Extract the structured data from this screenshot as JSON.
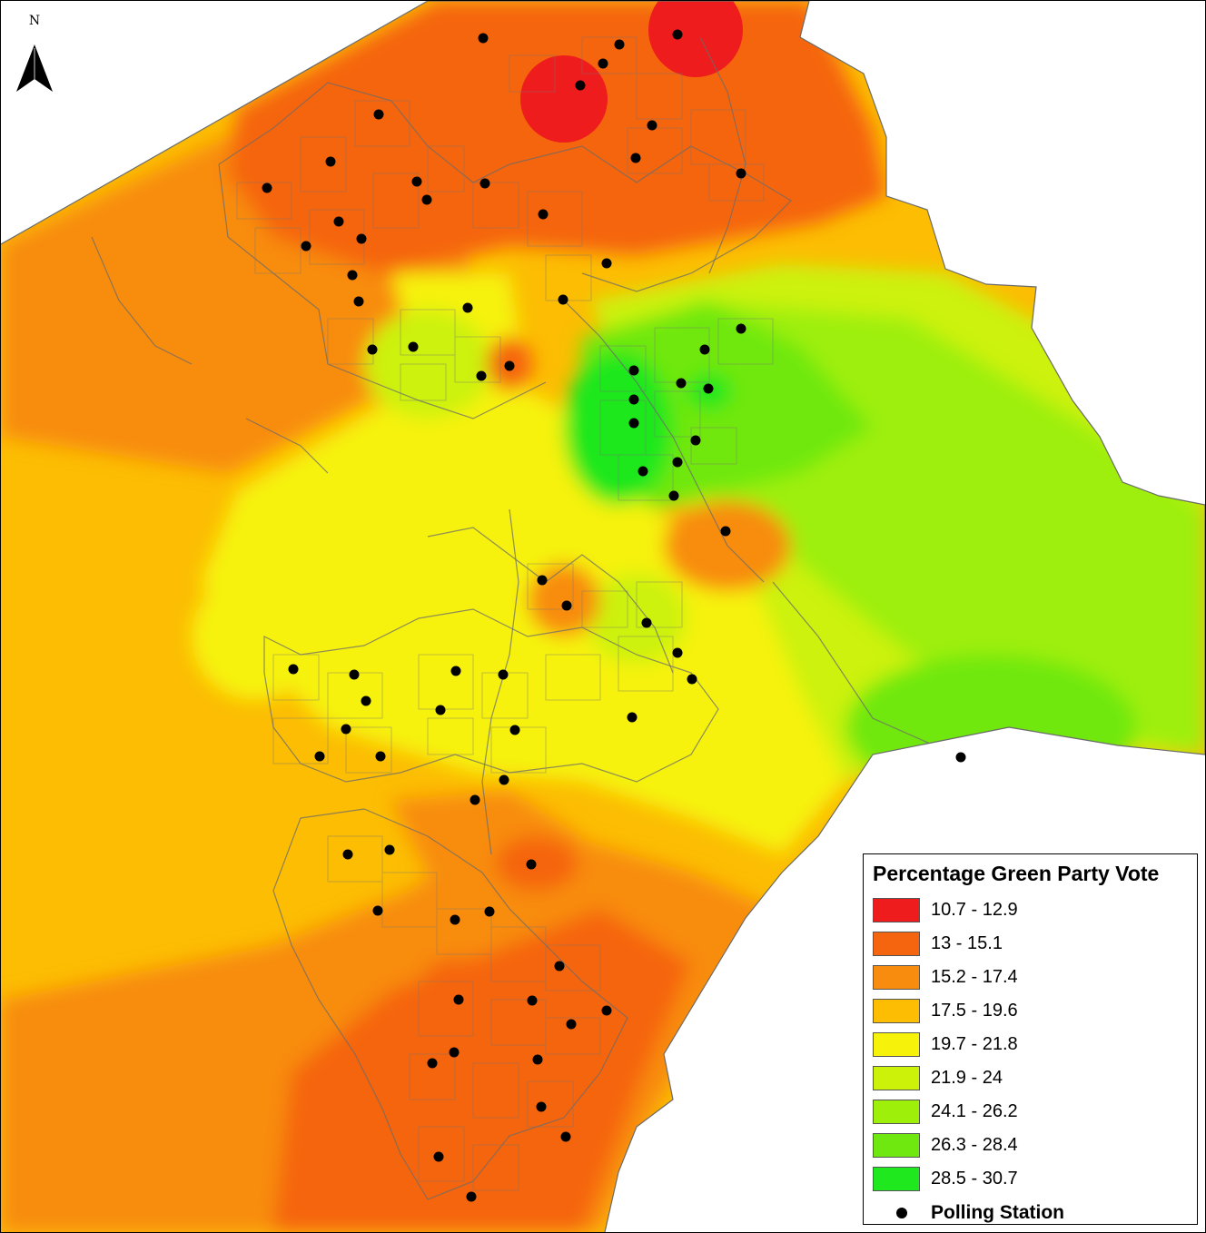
{
  "north_arrow": {
    "label": "N"
  },
  "legend": {
    "title": "Percentage Green Party Vote",
    "classes": [
      {
        "range": "10.7 - 12.9",
        "color": "#ee1c1c"
      },
      {
        "range": "13 - 15.1",
        "color": "#f5650f"
      },
      {
        "range": "15.2 - 17.4",
        "color": "#f88c0e"
      },
      {
        "range": "17.5 - 19.6",
        "color": "#fcbd02"
      },
      {
        "range": "19.7 - 21.8",
        "color": "#f6f20a"
      },
      {
        "range": "21.9 - 24",
        "color": "#ccf20a"
      },
      {
        "range": "24.1 - 26.2",
        "color": "#9eef0a"
      },
      {
        "range": "26.3 - 28.4",
        "color": "#6fe80f"
      },
      {
        "range": "28.5 - 30.7",
        "color": "#1fe81f"
      }
    ],
    "point_label": "Polling Station",
    "point_color": "#000000"
  }
}
